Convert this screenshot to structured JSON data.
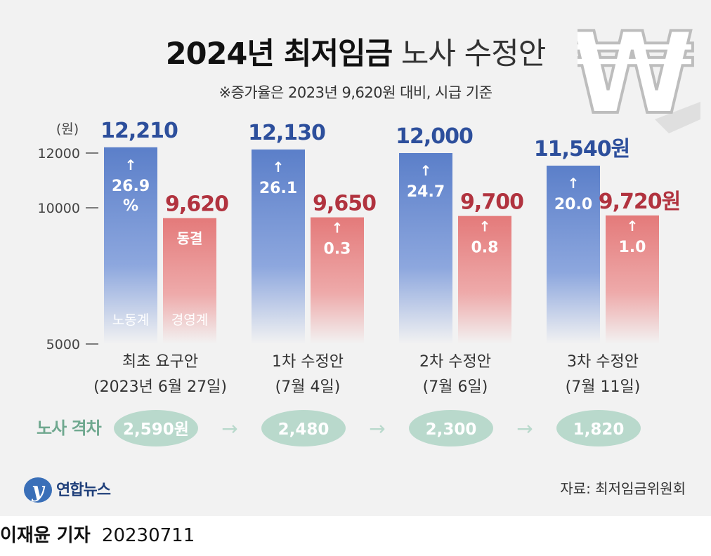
{
  "header": {
    "title_bold": "2024년 최저임금",
    "title_light": "노사 수정안",
    "subtitle": "※증가율은 2023년 9,620원 대비, 시급 기준"
  },
  "chart_data": {
    "type": "bar",
    "unit_label": "(원)",
    "y_ticks": [
      12000,
      10000,
      5000
    ],
    "y_tick_labels": [
      "12000",
      "10000",
      "5000"
    ],
    "ylim": [
      5000,
      12800
    ],
    "categories": [
      {
        "line1": "최초 요구안",
        "line2": "(2023년 6월 27일)"
      },
      {
        "line1": "1차 수정안",
        "line2": "(7월 4일)"
      },
      {
        "line1": "2차 수정안",
        "line2": "(7월 6일)"
      },
      {
        "line1": "3차 수정안",
        "line2": "(7월 11일)"
      }
    ],
    "series": [
      {
        "name": "노동계",
        "color": "#2d4f9c",
        "values": [
          12210,
          12130,
          12000,
          11540
        ],
        "value_labels": [
          "12,210",
          "12,130",
          "12,000",
          "11,540원"
        ],
        "change_labels": [
          "26.9\n%",
          "26.1",
          "24.7",
          "20.0"
        ]
      },
      {
        "name": "경영계",
        "color": "#b1333f",
        "values": [
          9620,
          9650,
          9700,
          9720
        ],
        "value_labels": [
          "9,620",
          "9,650",
          "9,700",
          "9,720원"
        ],
        "change_labels": [
          "동결",
          "0.3",
          "0.8",
          "1.0"
        ]
      }
    ],
    "gap": {
      "label": "노사 격차",
      "values": [
        "2,590원",
        "2,480",
        "2,300",
        "1,820"
      ]
    },
    "arrow_glyph": "↑",
    "gap_arrow_glyph": "→"
  },
  "footer": {
    "logo_text": "연합뉴스",
    "source": "자료: 최저임금위원회",
    "reporter": "이재윤 기자",
    "date": "20230711"
  },
  "colors": {
    "labor": "#2d4f9c",
    "management": "#b1333f",
    "gap_green": "#6fa88f",
    "gap_pill": "#b9d9cc"
  }
}
